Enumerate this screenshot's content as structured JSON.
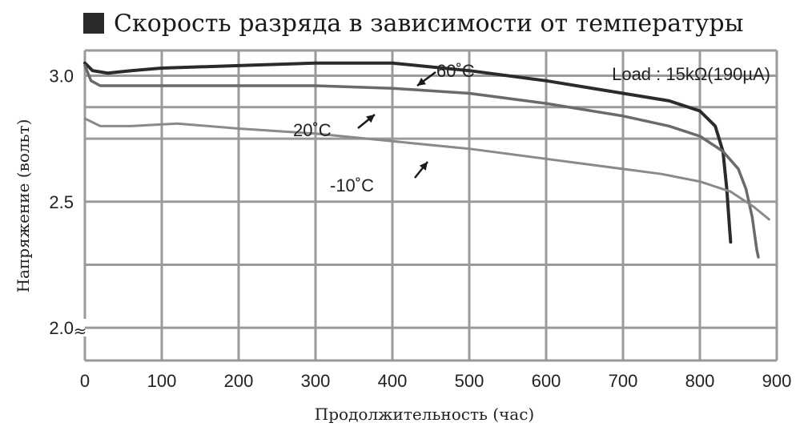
{
  "title": "Скорость разряда в зависимости от температуры",
  "colors": {
    "grid": "#9a9a9a",
    "frame": "#9a9a9a",
    "text": "#222222",
    "series_60": "#2b2b2b",
    "series_20": "#6a6a6a",
    "series_m10": "#8a8a8a"
  },
  "chart_data": {
    "type": "line",
    "title": "Скорость разряда в зависимости от температуры",
    "xlabel": "Продолжительность (час)",
    "ylabel": "Напряжение (вольт)",
    "xlim": [
      0,
      900
    ],
    "ylim": [
      1.87,
      3.1
    ],
    "x_ticks": [
      0,
      100,
      200,
      300,
      400,
      500,
      600,
      700,
      800,
      900
    ],
    "y_ticks": [
      2.0,
      2.5,
      3.0
    ],
    "y_tick_labels": [
      "2.0",
      "2.5",
      "3.0"
    ],
    "y_grid": [
      2.0,
      2.25,
      2.5,
      2.75,
      2.875,
      3.0
    ],
    "axis_break_mark": "≈",
    "grid": true,
    "annotation_load": "Load : 15kΩ(190µA)",
    "series": [
      {
        "name": "60˚C",
        "x": [
          0,
          10,
          30,
          60,
          100,
          200,
          300,
          400,
          500,
          600,
          700,
          760,
          800,
          820,
          830,
          835,
          838,
          840
        ],
        "y": [
          3.05,
          3.02,
          3.01,
          3.02,
          3.03,
          3.04,
          3.05,
          3.05,
          3.02,
          2.98,
          2.93,
          2.9,
          2.86,
          2.8,
          2.7,
          2.55,
          2.42,
          2.34
        ]
      },
      {
        "name": "20˚C",
        "x": [
          0,
          8,
          20,
          100,
          200,
          300,
          400,
          500,
          600,
          700,
          760,
          800,
          830,
          850,
          860,
          868,
          874,
          876
        ],
        "y": [
          3.04,
          2.98,
          2.96,
          2.96,
          2.96,
          2.96,
          2.95,
          2.93,
          2.89,
          2.84,
          2.8,
          2.76,
          2.7,
          2.63,
          2.55,
          2.44,
          2.31,
          2.28
        ]
      },
      {
        "name": "-10˚C",
        "x": [
          0,
          20,
          60,
          120,
          200,
          300,
          400,
          500,
          600,
          700,
          750,
          800,
          840,
          870,
          890
        ],
        "y": [
          2.83,
          2.8,
          2.8,
          2.81,
          2.79,
          2.77,
          2.74,
          2.71,
          2.67,
          2.63,
          2.61,
          2.58,
          2.54,
          2.48,
          2.43
        ]
      }
    ],
    "series_labels": [
      "60˚C",
      "20˚C",
      "-10˚C"
    ]
  }
}
